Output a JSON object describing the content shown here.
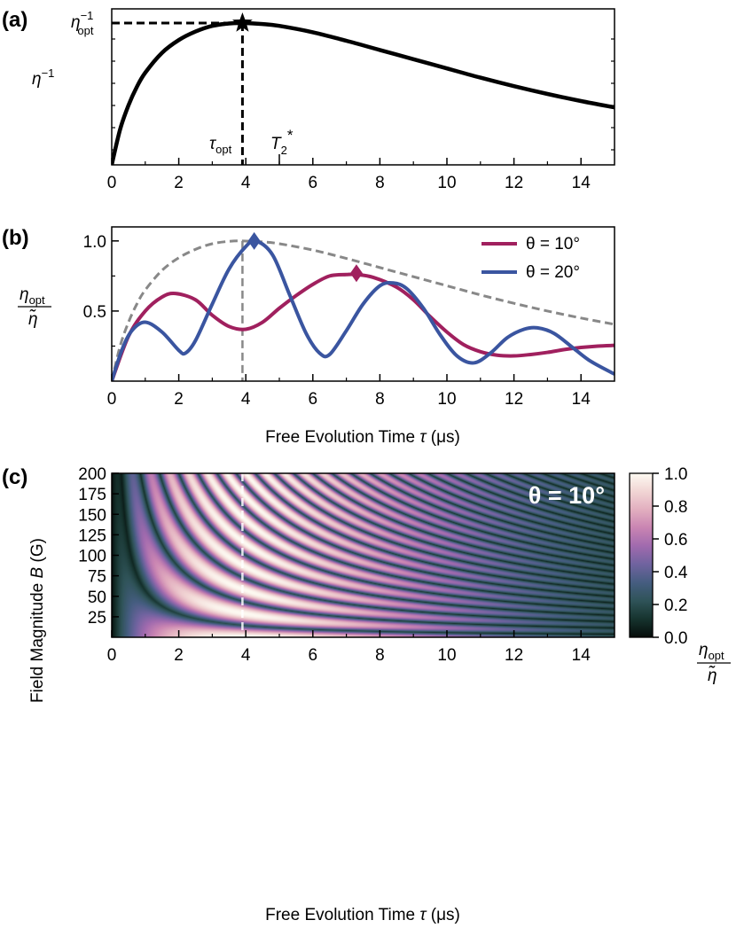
{
  "chart_data": [
    {
      "panel": "a",
      "panel_label": "(a)",
      "type": "line",
      "x_range": [
        0,
        15
      ],
      "x_ticks": [
        0,
        2,
        4,
        6,
        8,
        10,
        12,
        14
      ],
      "ylabel": "η⁻¹",
      "y_marker_label": "η⁻¹opt",
      "y_marker_label_base": "η",
      "y_marker_label_sup": "−1",
      "y_marker_label_sub": "opt",
      "ylabel_base": "η",
      "ylabel_sup": "−1",
      "tau_opt": 3.9,
      "tau_opt_label_base": "τ",
      "tau_opt_label_sub": "opt",
      "t2_star": 5.0,
      "t2_star_label_base": "T",
      "t2_star_label_sub": "2",
      "t2_star_label_sup": "*",
      "series": [
        {
          "x": [
            0,
            0.25,
            0.5,
            0.75,
            1,
            1.5,
            2,
            2.5,
            3,
            3.5,
            3.9,
            4.5,
            5,
            6,
            7,
            8,
            9,
            10,
            11,
            12,
            13,
            14,
            15
          ],
          "y": [
            0,
            0.25,
            0.42,
            0.55,
            0.65,
            0.79,
            0.88,
            0.94,
            0.98,
            0.997,
            1.0,
            0.993,
            0.98,
            0.935,
            0.875,
            0.81,
            0.745,
            0.68,
            0.615,
            0.555,
            0.5,
            0.45,
            0.405
          ]
        }
      ]
    },
    {
      "panel": "b",
      "panel_label": "(b)",
      "type": "line",
      "x_range": [
        0,
        15
      ],
      "y_range": [
        0,
        1.1
      ],
      "x_ticks": [
        0,
        2,
        4,
        6,
        8,
        10,
        12,
        14
      ],
      "y_ticks": [
        0.5,
        1.0
      ],
      "y_tick_labels": [
        "0.5",
        "1.0"
      ],
      "xlabel_text": "Free Evolution Time ",
      "xlabel_var": "τ",
      "xlabel_unit": " (μs)",
      "ylabel_top_base": "η",
      "ylabel_top_sub": "opt",
      "ylabel_bottom": "η̃",
      "tau_opt": 3.9,
      "legend_position": "top-right",
      "envelope": {
        "x": [
          0,
          0.25,
          0.5,
          0.75,
          1,
          1.5,
          2,
          2.5,
          3,
          3.5,
          3.9,
          4.5,
          5,
          6,
          7,
          8,
          9,
          10,
          11,
          12,
          13,
          14,
          15
        ],
        "y": [
          0,
          0.25,
          0.42,
          0.55,
          0.65,
          0.79,
          0.88,
          0.94,
          0.98,
          0.997,
          1.0,
          0.993,
          0.98,
          0.935,
          0.875,
          0.81,
          0.745,
          0.68,
          0.615,
          0.555,
          0.5,
          0.45,
          0.405
        ],
        "color": "#888888"
      },
      "series": [
        {
          "name": "θ = 10°",
          "color": "#a0205e",
          "x": [
            0,
            0.5,
            1,
            1.5,
            1.9,
            2.5,
            3,
            3.5,
            4,
            4.5,
            5,
            5.5,
            6,
            6.5,
            7,
            7.3,
            7.8,
            8.5,
            9,
            9.5,
            10,
            10.5,
            11,
            11.5,
            12,
            12.5,
            13,
            13.5,
            14,
            14.5,
            15
          ],
          "y": [
            0,
            0.32,
            0.5,
            0.6,
            0.625,
            0.58,
            0.47,
            0.39,
            0.37,
            0.42,
            0.52,
            0.61,
            0.69,
            0.75,
            0.76,
            0.76,
            0.74,
            0.67,
            0.58,
            0.46,
            0.35,
            0.26,
            0.21,
            0.185,
            0.18,
            0.19,
            0.205,
            0.225,
            0.24,
            0.25,
            0.255
          ]
        },
        {
          "name": "θ = 20°",
          "color": "#3a55a0",
          "x": [
            0,
            0.3,
            0.6,
            1,
            1.5,
            2,
            2.2,
            2.5,
            3,
            3.5,
            4,
            4.3,
            4.8,
            5.3,
            5.8,
            6.2,
            6.5,
            7,
            7.5,
            8,
            8.4,
            8.8,
            9.3,
            9.8,
            10.3,
            10.8,
            11.3,
            11.8,
            12.3,
            12.7,
            13.2,
            13.8,
            14.3,
            15
          ],
          "y": [
            0,
            0.22,
            0.36,
            0.42,
            0.35,
            0.22,
            0.2,
            0.29,
            0.55,
            0.8,
            0.96,
            1.0,
            0.9,
            0.62,
            0.34,
            0.2,
            0.19,
            0.36,
            0.55,
            0.68,
            0.7,
            0.66,
            0.52,
            0.33,
            0.18,
            0.13,
            0.2,
            0.31,
            0.37,
            0.38,
            0.34,
            0.23,
            0.14,
            0.05
          ]
        }
      ],
      "markers": [
        {
          "series": "θ = 20°",
          "x": 4.25,
          "y": 1.0,
          "color": "#3a55a0"
        },
        {
          "series": "θ = 10°",
          "x": 7.3,
          "y": 0.77,
          "color": "#a0205e"
        }
      ]
    },
    {
      "panel": "c",
      "panel_label": "(c)",
      "type": "heatmap",
      "x_range": [
        0,
        15
      ],
      "y_range": [
        0,
        200
      ],
      "x_ticks": [
        0,
        2,
        4,
        6,
        8,
        10,
        12,
        14
      ],
      "y_ticks": [
        25,
        50,
        75,
        100,
        125,
        150,
        175,
        200
      ],
      "xlabel_text": "Free Evolution Time ",
      "xlabel_var": "τ",
      "xlabel_unit": " (μs)",
      "ylabel_text": "Field Magnitude ",
      "ylabel_var": "B",
      "ylabel_unit": " (G)",
      "annotation": "θ = 10°",
      "tau_opt": 3.9,
      "colorbar": {
        "range": [
          0,
          1
        ],
        "ticks": [
          0.0,
          0.2,
          0.4,
          0.6,
          0.8,
          1.0
        ],
        "tick_labels": [
          "0.0",
          "0.2",
          "0.4",
          "0.6",
          "0.8",
          "1.0"
        ],
        "label_top_base": "η",
        "label_top_sub": "opt",
        "label_bottom": "η̃",
        "colormap": [
          "#050c0a",
          "#16332e",
          "#2f5358",
          "#455d80",
          "#6f639f",
          "#a06aae",
          "#c984b2",
          "#e2aebf",
          "#f1d5d4",
          "#fdfaf2"
        ]
      }
    }
  ]
}
